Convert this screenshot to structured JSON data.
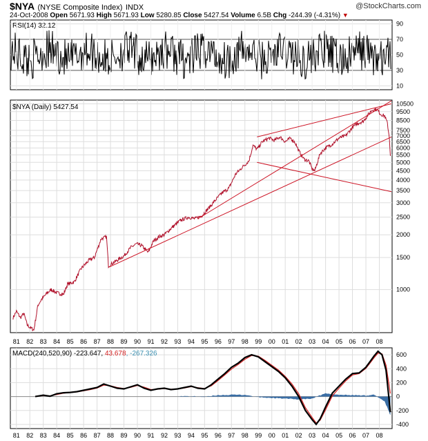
{
  "header": {
    "symbol": "$NYA",
    "name": "(NYSE Composite Index)",
    "type": "INDX",
    "date": "24-Oct-2008",
    "open_label": "Open",
    "open": "5671.93",
    "high_label": "High",
    "high": "5671.93",
    "low_label": "Low",
    "low": "5280.85",
    "close_label": "Close",
    "close": "5427.54",
    "volume_label": "Volume",
    "volume": "6.5B",
    "chg_label": "Chg",
    "chg": "-244.39 (-4.31%)",
    "source": "@StockCharts.com"
  },
  "chart_data": [
    {
      "type": "line",
      "panel": "rsi",
      "legend": "RSI(14) 32.12",
      "y_ticks": [
        10,
        30,
        50,
        70,
        90
      ],
      "ylim": [
        5,
        95
      ],
      "reference_lines": [
        30,
        70
      ],
      "series": [
        {
          "name": "RSI(14)",
          "last": 32.12
        }
      ]
    },
    {
      "type": "line",
      "panel": "price",
      "legend": "$NYA (Daily) 5427.54",
      "scale": "log",
      "ylim": [
        580,
        11000
      ],
      "y_ticks": [
        1000,
        1500,
        2000,
        2500,
        3000,
        3500,
        4000,
        4500,
        5000,
        5500,
        6000,
        6500,
        7000,
        7500,
        8500,
        9500,
        10500
      ],
      "x_labels": [
        "81",
        "82",
        "83",
        "84",
        "85",
        "86",
        "87",
        "88",
        "89",
        "90",
        "91",
        "92",
        "93",
        "94",
        "95",
        "96",
        "97",
        "98",
        "99",
        "00",
        "01",
        "02",
        "03",
        "04",
        "05",
        "06",
        "07",
        "08"
      ],
      "series": [
        {
          "name": "$NYA (Daily)",
          "x": [
            1980.75,
            1981.0,
            1981.3,
            1981.55,
            1981.8,
            1982.0,
            1982.3,
            1982.6,
            1982.85,
            1983.3,
            1983.6,
            1984.0,
            1984.5,
            1984.8,
            1985.3,
            1985.8,
            1986.4,
            1986.8,
            1987.3,
            1987.7,
            1987.85,
            1988.5,
            1989.0,
            1989.5,
            1989.9,
            1990.3,
            1990.8,
            1991.2,
            1991.6,
            1992.0,
            1992.6,
            1993.2,
            1993.8,
            1994.3,
            1994.8,
            1995.3,
            1995.8,
            1996.3,
            1996.8,
            1997.3,
            1997.8,
            1998.3,
            1998.6,
            1998.9,
            1999.3,
            1999.8,
            2000.2,
            2000.6,
            2001.0,
            2001.4,
            2001.75,
            2002.0,
            2002.4,
            2002.75,
            2003.0,
            2003.2,
            2003.6,
            2004.0,
            2004.5,
            2005.0,
            2005.5,
            2006.0,
            2006.4,
            2006.8,
            2007.2,
            2007.45,
            2007.8,
            2008.1,
            2008.4,
            2008.6,
            2008.75,
            2008.82
          ],
          "y": [
            700,
            760,
            700,
            740,
            640,
            620,
            600,
            820,
            880,
            960,
            1000,
            960,
            940,
            1070,
            1100,
            1300,
            1450,
            1500,
            1900,
            1950,
            1350,
            1450,
            1530,
            1700,
            1780,
            1750,
            1600,
            1850,
            1950,
            2000,
            2200,
            2400,
            2500,
            2450,
            2550,
            2800,
            3100,
            3400,
            3600,
            4300,
            4700,
            5100,
            6200,
            5900,
            6500,
            6800,
            6600,
            6900,
            6500,
            6800,
            6400,
            5800,
            5200,
            5100,
            4600,
            4500,
            5600,
            6000,
            6300,
            6800,
            7000,
            7800,
            8200,
            8400,
            9200,
            9700,
            9800,
            9200,
            9000,
            8200,
            6800,
            5427.54
          ]
        }
      ],
      "trendlines": [
        {
          "x": [
            1987.9,
            2008.9
          ],
          "y": [
            1330,
            6900
          ]
        },
        {
          "x": [
            1994.5,
            2008.9
          ],
          "y": [
            2450,
            10900
          ]
        },
        {
          "x": [
            1998.9,
            2008.9
          ],
          "y": [
            6900,
            10500
          ]
        },
        {
          "x": [
            1998.9,
            2008.9
          ],
          "y": [
            5000,
            3450
          ]
        }
      ]
    },
    {
      "type": "area",
      "panel": "macd",
      "legend": {
        "prefix": "MACD(240,520,90)",
        "macd": "-223.647",
        "signal": "43.678",
        "histogram": "-267.326"
      },
      "y_ticks": [
        -400,
        -200,
        0,
        200,
        400,
        600
      ],
      "ylim": [
        -460,
        700
      ],
      "x_labels": [
        "81",
        "82",
        "83",
        "84",
        "85",
        "86",
        "87",
        "88",
        "89",
        "90",
        "91",
        "92",
        "93",
        "94",
        "95",
        "96",
        "97",
        "98",
        "99",
        "00",
        "01",
        "02",
        "03",
        "04",
        "05",
        "06",
        "07",
        "08"
      ],
      "series": [
        {
          "name": "MACD",
          "x": [
            1982.4,
            1983.0,
            1983.5,
            1984.0,
            1984.5,
            1985.0,
            1985.5,
            1986.0,
            1986.5,
            1987.0,
            1987.5,
            1988.0,
            1988.5,
            1989.0,
            1989.5,
            1990.0,
            1990.5,
            1991.0,
            1991.5,
            1992.0,
            1992.5,
            1993.0,
            1993.5,
            1994.0,
            1994.5,
            1995.0,
            1995.5,
            1996.0,
            1996.5,
            1997.0,
            1997.5,
            1998.0,
            1998.5,
            1999.0,
            1999.5,
            2000.0,
            2000.5,
            2001.0,
            2001.5,
            2002.0,
            2002.5,
            2003.0,
            2003.3,
            2003.6,
            2004.0,
            2004.5,
            2005.0,
            2005.5,
            2006.0,
            2006.5,
            2007.0,
            2007.3,
            2007.6,
            2007.9,
            2008.2,
            2008.5,
            2008.82
          ],
          "y": [
            0,
            20,
            5,
            40,
            55,
            60,
            70,
            90,
            110,
            130,
            180,
            150,
            120,
            110,
            140,
            170,
            120,
            90,
            110,
            120,
            100,
            110,
            130,
            150,
            120,
            110,
            170,
            250,
            330,
            420,
            480,
            560,
            600,
            570,
            500,
            430,
            360,
            270,
            150,
            0,
            -200,
            -330,
            -400,
            -320,
            -150,
            50,
            150,
            250,
            330,
            340,
            420,
            500,
            580,
            650,
            600,
            380,
            -223.6
          ]
        },
        {
          "name": "Signal",
          "x": [
            1982.4,
            1983.0,
            1983.5,
            1984.0,
            1984.5,
            1985.0,
            1985.5,
            1986.0,
            1986.5,
            1987.0,
            1987.5,
            1988.0,
            1988.5,
            1989.0,
            1989.5,
            1990.0,
            1990.5,
            1991.0,
            1991.5,
            1992.0,
            1992.5,
            1993.0,
            1993.5,
            1994.0,
            1994.5,
            1995.0,
            1995.5,
            1996.0,
            1996.5,
            1997.0,
            1997.5,
            1998.0,
            1998.5,
            1999.0,
            1999.5,
            2000.0,
            2000.5,
            2001.0,
            2001.5,
            2002.0,
            2002.5,
            2003.0,
            2003.3,
            2003.6,
            2004.0,
            2004.5,
            2005.0,
            2005.5,
            2006.0,
            2006.5,
            2007.0,
            2007.3,
            2007.6,
            2007.9,
            2008.2,
            2008.5,
            2008.82
          ],
          "y": [
            0,
            15,
            10,
            30,
            48,
            58,
            66,
            82,
            100,
            122,
            165,
            155,
            130,
            115,
            132,
            160,
            135,
            100,
            105,
            115,
            105,
            108,
            123,
            142,
            128,
            115,
            155,
            230,
            310,
            395,
            460,
            535,
            590,
            580,
            520,
            450,
            380,
            290,
            180,
            40,
            -160,
            -300,
            -380,
            -340,
            -190,
            10,
            120,
            225,
            310,
            330,
            405,
            480,
            555,
            625,
            615,
            450,
            43.7
          ]
        }
      ],
      "histogram": {
        "x": [
          1993.0,
          1994.0,
          1995.0,
          1996.0,
          1997.0,
          1998.0,
          1999.0,
          2000.0,
          2001.0,
          2002.0,
          2003.0,
          2003.5,
          2004.0,
          2005.0,
          2006.0,
          2007.0,
          2007.6,
          2008.0,
          2008.4,
          2008.82
        ],
        "y": [
          5,
          5,
          -5,
          20,
          25,
          25,
          -10,
          -20,
          -30,
          -40,
          -30,
          10,
          45,
          25,
          20,
          15,
          25,
          -20,
          -70,
          -267.3
        ]
      }
    }
  ]
}
